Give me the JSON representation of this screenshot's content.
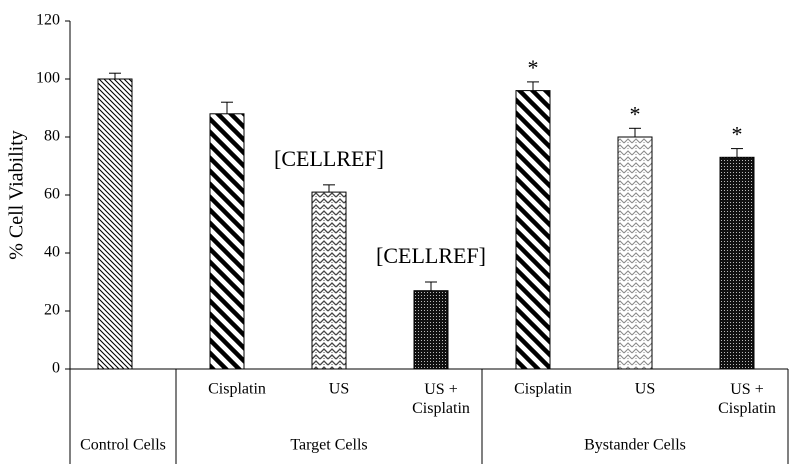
{
  "chart_data": {
    "type": "bar",
    "y_label": "% Cell Viability",
    "groups": [
      {
        "name": "Control Cells",
        "categories": [
          null
        ]
      },
      {
        "name": "Target Cells",
        "categories": [
          "Cisplatin",
          "US",
          "US +\nCisplatin"
        ]
      },
      {
        "name": "Bystander Cells",
        "categories": [
          "Cisplatin",
          "US",
          "US +\nCisplatin"
        ]
      }
    ],
    "values": [
      100,
      88,
      61,
      27,
      96,
      80,
      73
    ],
    "errors": [
      2,
      4,
      2.5,
      3,
      3,
      3,
      3
    ],
    "markers": [
      null,
      null,
      "[CELLREF]",
      "[CELLREF]",
      "*",
      "*",
      "*"
    ],
    "patterns": [
      "fine-diagonal",
      "wide-diagonal",
      "zigzag",
      "dense-dots",
      "wide-diagonal",
      "light-zigzag",
      "dense-dots"
    ],
    "color": "#000000",
    "ylim": [
      0,
      120
    ],
    "yticks": [
      0,
      20,
      40,
      60,
      80,
      100,
      120
    ],
    "grid": false
  }
}
